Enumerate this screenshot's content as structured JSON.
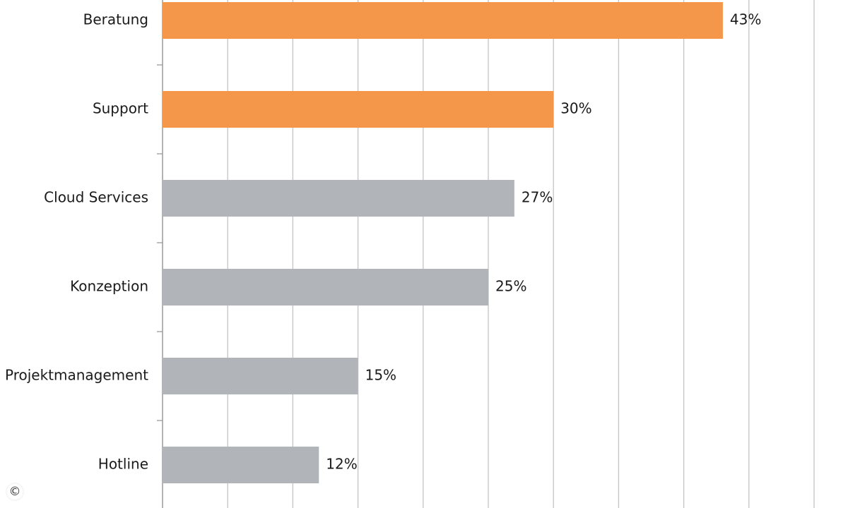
{
  "chart_data": {
    "type": "bar",
    "orientation": "horizontal",
    "categories": [
      "Beratung",
      "Support",
      "Cloud Services",
      "Konzeption",
      "Projektmanagement",
      "Hotline"
    ],
    "values": [
      43,
      30,
      27,
      25,
      15,
      12
    ],
    "value_labels": [
      "43%",
      "30%",
      "27%",
      "25%",
      "15%",
      "12%"
    ],
    "bar_colors": [
      "#f5974b",
      "#f5974b",
      "#b1b4b9",
      "#b1b4b9",
      "#b1b4b9",
      "#b1b4b9"
    ],
    "xlim": [
      0,
      50
    ],
    "grid": true,
    "title": "",
    "xlabel": "",
    "ylabel": ""
  },
  "colors": {
    "highlight": "#f5974b",
    "neutral": "#b1b4b9",
    "gridline": "#c4c4c4",
    "axis": "#9a9a9a"
  },
  "footer": {
    "copyright_symbol": "©"
  }
}
